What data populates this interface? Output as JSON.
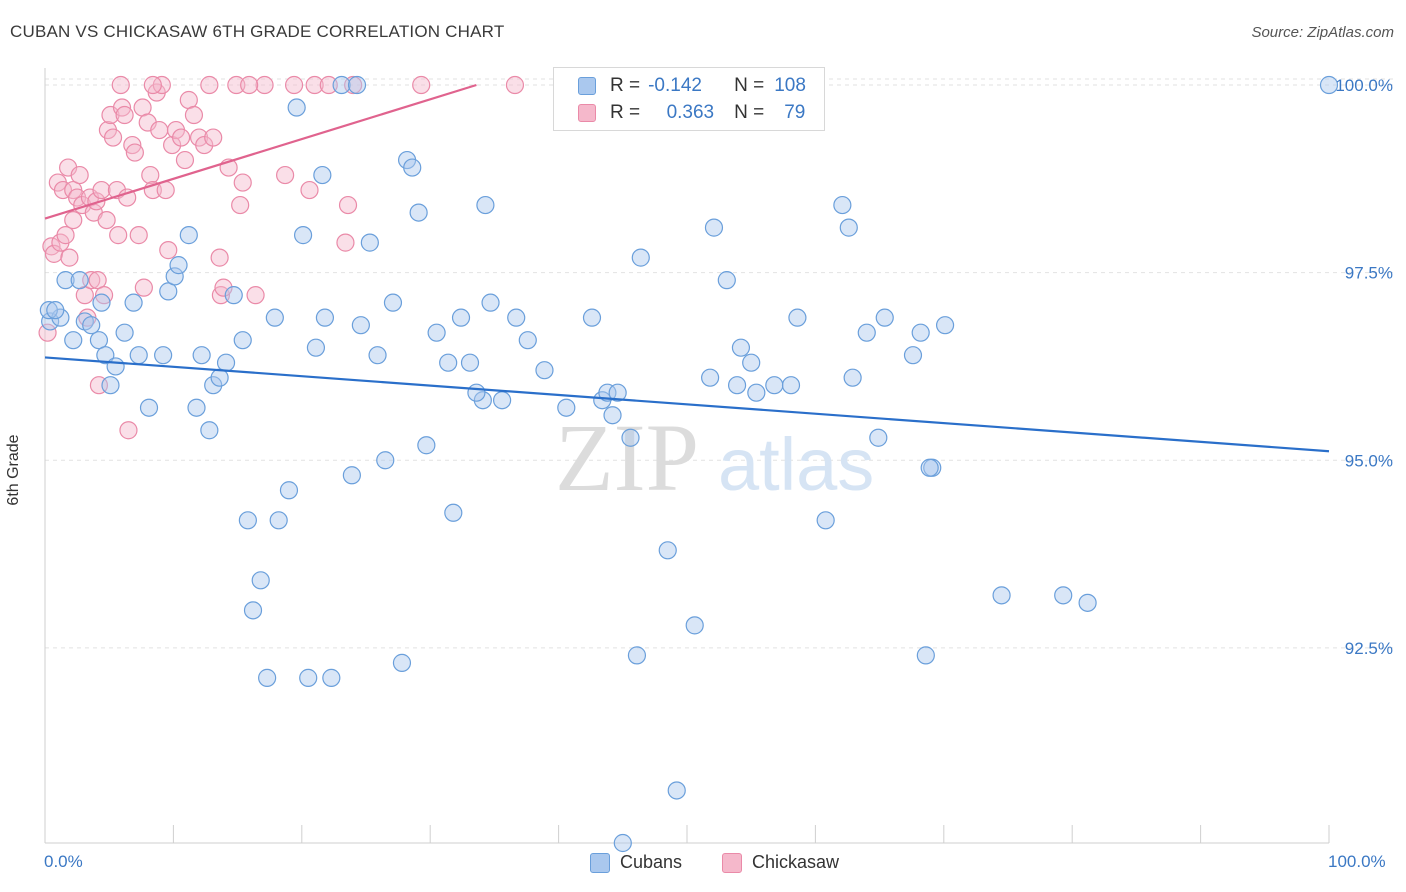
{
  "header": {
    "title": "CUBAN VS CHICKASAW 6TH GRADE CORRELATION CHART",
    "source": "Source: ZipAtlas.com"
  },
  "watermark": {
    "zip": "ZIP",
    "atlas": "atlas"
  },
  "legend": {
    "rows": [
      {
        "r_label": "R =",
        "r_value": "-0.142",
        "n_label": "N =",
        "n_value": "108"
      },
      {
        "r_label": "R =",
        "r_value": "0.363",
        "n_label": "N =",
        "n_value": "79"
      }
    ]
  },
  "bottom_legend": {
    "cubans": "Cubans",
    "chickasaw": "Chickasaw"
  },
  "colors": {
    "cubans_fill": "#aac8ee",
    "cubans_stroke": "#6a9fdb",
    "cubans_line": "#2a6fca",
    "chickasaw_fill": "#f5b8cb",
    "chickasaw_stroke": "#ea8aa8",
    "chickasaw_line": "#e0638e",
    "tick_label": "#3b78c4",
    "grid": "#e2e2e2"
  },
  "chart_data": {
    "type": "scatter",
    "title": "CUBAN VS CHICKASAW 6TH GRADE CORRELATION CHART",
    "xlabel": "",
    "ylabel": "6th Grade",
    "xlim": [
      0,
      100
    ],
    "ylim": [
      89.9,
      100.2
    ],
    "x_tick_labels": [
      "0.0%",
      "100.0%"
    ],
    "y_ticks": [
      100.0,
      97.5,
      95.0,
      92.5
    ],
    "y_tick_labels": [
      "100.0%",
      "97.5%",
      "95.0%",
      "92.5%"
    ],
    "grid": "horizontal dashed",
    "series": [
      {
        "name": "Cubans",
        "r": -0.142,
        "n": 108,
        "trend": {
          "x": [
            0,
            100
          ],
          "y": [
            96.37,
            95.12
          ]
        },
        "points": [
          [
            0.4,
            96.85
          ],
          [
            1.2,
            96.9
          ],
          [
            1.6,
            97.4
          ],
          [
            2.2,
            96.6
          ],
          [
            3.1,
            96.85
          ],
          [
            4.2,
            96.6
          ],
          [
            4.7,
            96.4
          ],
          [
            5.1,
            96.0
          ],
          [
            5.5,
            96.25
          ],
          [
            6.2,
            96.7
          ],
          [
            6.9,
            97.1
          ],
          [
            7.3,
            96.4
          ],
          [
            8.1,
            95.7
          ],
          [
            9.2,
            96.4
          ],
          [
            9.6,
            97.25
          ],
          [
            10.1,
            97.45
          ],
          [
            10.4,
            97.6
          ],
          [
            11.2,
            98.0
          ],
          [
            11.8,
            95.7
          ],
          [
            12.2,
            96.4
          ],
          [
            12.8,
            95.4
          ],
          [
            13.1,
            96.0
          ],
          [
            13.6,
            96.1
          ],
          [
            14.1,
            96.3
          ],
          [
            14.7,
            97.2
          ],
          [
            15.4,
            96.6
          ],
          [
            15.8,
            94.2
          ],
          [
            16.2,
            93.0
          ],
          [
            16.8,
            93.4
          ],
          [
            17.3,
            92.1
          ],
          [
            17.9,
            96.9
          ],
          [
            18.2,
            94.2
          ],
          [
            19.0,
            94.6
          ],
          [
            19.6,
            99.7
          ],
          [
            20.1,
            98.0
          ],
          [
            20.5,
            92.1
          ],
          [
            21.1,
            96.5
          ],
          [
            21.6,
            98.8
          ],
          [
            21.8,
            96.9
          ],
          [
            22.3,
            92.1
          ],
          [
            23.1,
            100.0
          ],
          [
            23.9,
            94.8
          ],
          [
            24.3,
            100.0
          ],
          [
            24.6,
            96.8
          ],
          [
            25.3,
            97.9
          ],
          [
            25.9,
            96.4
          ],
          [
            26.5,
            95.0
          ],
          [
            27.1,
            97.1
          ],
          [
            27.8,
            92.3
          ],
          [
            28.2,
            99.0
          ],
          [
            28.6,
            98.9
          ],
          [
            29.1,
            98.3
          ],
          [
            29.7,
            95.2
          ],
          [
            30.5,
            96.7
          ],
          [
            31.4,
            96.3
          ],
          [
            31.8,
            94.3
          ],
          [
            32.4,
            96.9
          ],
          [
            33.1,
            96.3
          ],
          [
            34.1,
            95.8
          ],
          [
            34.3,
            98.4
          ],
          [
            34.7,
            97.1
          ],
          [
            35.6,
            95.8
          ],
          [
            36.7,
            96.9
          ],
          [
            37.6,
            96.6
          ],
          [
            40.6,
            95.7
          ],
          [
            42.6,
            96.9
          ],
          [
            43.4,
            95.8
          ],
          [
            43.8,
            95.9
          ],
          [
            44.2,
            95.6
          ],
          [
            44.6,
            95.9
          ],
          [
            45.0,
            89.9
          ],
          [
            45.6,
            95.3
          ],
          [
            46.1,
            92.4
          ],
          [
            46.4,
            97.7
          ],
          [
            48.5,
            93.8
          ],
          [
            49.2,
            90.6
          ],
          [
            50.6,
            92.8
          ],
          [
            51.8,
            96.1
          ],
          [
            52.1,
            98.1
          ],
          [
            53.1,
            97.4
          ],
          [
            53.9,
            96.0
          ],
          [
            55.0,
            96.3
          ],
          [
            55.4,
            95.9
          ],
          [
            56.8,
            96.0
          ],
          [
            58.6,
            96.9
          ],
          [
            60.8,
            94.2
          ],
          [
            62.1,
            98.4
          ],
          [
            62.6,
            98.1
          ],
          [
            62.9,
            96.1
          ],
          [
            64.0,
            96.7
          ],
          [
            64.9,
            95.3
          ],
          [
            65.4,
            96.9
          ],
          [
            67.6,
            96.4
          ],
          [
            68.2,
            96.7
          ],
          [
            68.6,
            92.4
          ],
          [
            69.1,
            94.9
          ],
          [
            70.1,
            96.8
          ],
          [
            74.5,
            93.2
          ],
          [
            79.3,
            93.2
          ],
          [
            81.2,
            93.1
          ],
          [
            100.0,
            100.0
          ],
          [
            0.3,
            97.0
          ],
          [
            0.8,
            97.0
          ],
          [
            3.6,
            96.8
          ],
          [
            4.4,
            97.1
          ],
          [
            2.7,
            97.4
          ],
          [
            54.2,
            96.5
          ],
          [
            33.6,
            95.9
          ],
          [
            38.9,
            96.2
          ],
          [
            68.9,
            94.9
          ],
          [
            58.1,
            96.0
          ]
        ]
      },
      {
        "name": "Chickasaw",
        "r": 0.363,
        "n": 79,
        "trend": {
          "x": [
            0,
            33.6
          ],
          "y": [
            98.22,
            100.0
          ]
        },
        "points": [
          [
            0.2,
            96.7
          ],
          [
            0.5,
            97.85
          ],
          [
            0.7,
            97.75
          ],
          [
            1.0,
            98.7
          ],
          [
            1.2,
            97.9
          ],
          [
            1.4,
            98.6
          ],
          [
            1.6,
            98.0
          ],
          [
            1.8,
            98.9
          ],
          [
            1.9,
            97.7
          ],
          [
            2.2,
            98.6
          ],
          [
            2.5,
            98.5
          ],
          [
            2.7,
            98.8
          ],
          [
            2.9,
            98.4
          ],
          [
            3.1,
            97.2
          ],
          [
            3.3,
            96.9
          ],
          [
            3.5,
            98.5
          ],
          [
            3.6,
            97.4
          ],
          [
            3.8,
            98.3
          ],
          [
            4.0,
            98.45
          ],
          [
            4.1,
            97.4
          ],
          [
            4.2,
            96.0
          ],
          [
            4.4,
            98.6
          ],
          [
            4.6,
            97.2
          ],
          [
            4.8,
            98.2
          ],
          [
            4.9,
            99.4
          ],
          [
            5.1,
            99.6
          ],
          [
            5.3,
            99.3
          ],
          [
            5.6,
            98.6
          ],
          [
            5.7,
            98.0
          ],
          [
            6.0,
            99.7
          ],
          [
            6.2,
            99.6
          ],
          [
            6.4,
            98.5
          ],
          [
            6.5,
            95.4
          ],
          [
            6.8,
            99.2
          ],
          [
            7.0,
            99.1
          ],
          [
            7.3,
            98.0
          ],
          [
            7.6,
            99.7
          ],
          [
            7.7,
            97.3
          ],
          [
            8.0,
            99.5
          ],
          [
            8.2,
            98.8
          ],
          [
            8.4,
            98.6
          ],
          [
            8.7,
            99.9
          ],
          [
            8.9,
            99.4
          ],
          [
            9.1,
            100.0
          ],
          [
            9.4,
            98.6
          ],
          [
            9.6,
            97.8
          ],
          [
            9.9,
            99.2
          ],
          [
            10.2,
            99.4
          ],
          [
            10.6,
            99.3
          ],
          [
            10.9,
            99.0
          ],
          [
            11.2,
            99.8
          ],
          [
            11.6,
            99.6
          ],
          [
            12.0,
            99.3
          ],
          [
            12.4,
            99.2
          ],
          [
            12.8,
            100.0
          ],
          [
            13.1,
            99.3
          ],
          [
            13.6,
            97.7
          ],
          [
            13.7,
            97.2
          ],
          [
            13.9,
            97.3
          ],
          [
            14.3,
            98.9
          ],
          [
            14.9,
            100.0
          ],
          [
            15.2,
            98.4
          ],
          [
            15.4,
            98.7
          ],
          [
            16.4,
            97.2
          ],
          [
            17.1,
            100.0
          ],
          [
            18.7,
            98.8
          ],
          [
            19.4,
            100.0
          ],
          [
            20.6,
            98.6
          ],
          [
            21.0,
            100.0
          ],
          [
            22.1,
            100.0
          ],
          [
            23.6,
            98.4
          ],
          [
            23.4,
            97.9
          ],
          [
            24.0,
            100.0
          ],
          [
            29.3,
            100.0
          ],
          [
            36.6,
            100.0
          ],
          [
            2.2,
            98.2
          ],
          [
            5.9,
            100.0
          ],
          [
            8.4,
            100.0
          ],
          [
            15.9,
            100.0
          ]
        ]
      }
    ]
  }
}
